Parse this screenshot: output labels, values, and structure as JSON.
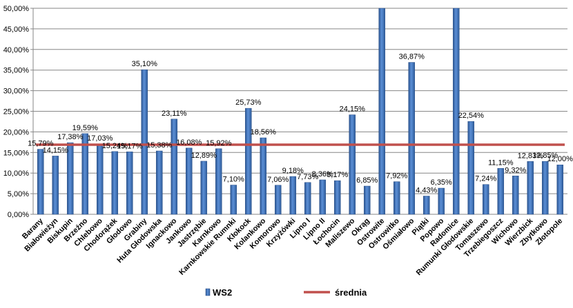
{
  "chart_data": {
    "type": "bar",
    "title": "",
    "xlabel": "",
    "ylabel": "",
    "ylim": [
      0,
      50
    ],
    "ytick_step": 5,
    "yticks": [
      "0,00%",
      "5,00%",
      "10,00%",
      "15,00%",
      "20,00%",
      "25,00%",
      "30,00%",
      "35,00%",
      "40,00%",
      "45,00%",
      "50,00%"
    ],
    "grid": true,
    "categories": [
      "Barany",
      "Białowieżyn",
      "Biskupin",
      "Brzeźno",
      "Chlebowo",
      "Chodorążek",
      "Głodowo",
      "Grabiny",
      "Huta Głodowska",
      "Ignackowo",
      "Jankowo",
      "Jastrzębie",
      "Karnkowo",
      "Karnkowskie Rumnki",
      "Kłokock",
      "Kolankowo",
      "Komorowo",
      "Krzyżówki",
      "Lipno I",
      "Lipno II",
      "Łochocin",
      "Maliszewo",
      "Okrąg",
      "Ostrowite",
      "Ostrowitko",
      "Ośmiałowo",
      "Piątki",
      "Popowo",
      "Radomice",
      "Rumunki Głodowskie",
      "Tomaszewo",
      "Trzebiegoszcz",
      "Wichowo",
      "Wierzbick",
      "Zbytkowo",
      "Złotopole"
    ],
    "series": [
      {
        "name": "WS2",
        "color": "#4a7ebb",
        "values": [
          15.79,
          14.15,
          17.38,
          19.59,
          17.03,
          15.24,
          15.17,
          35.1,
          15.38,
          23.11,
          16.08,
          12.89,
          15.92,
          7.1,
          25.73,
          18.56,
          7.06,
          9.18,
          7.73,
          8.36,
          8.17,
          24.15,
          6.85,
          50.0,
          7.92,
          36.87,
          4.43,
          6.35,
          50.0,
          22.54,
          7.24,
          11.15,
          9.32,
          12.83,
          12.85,
          12.0
        ],
        "labels": [
          "15,79%",
          "14,15%",
          "17,38%",
          "19,59%",
          "17,03%",
          "15,24%",
          "15,17%",
          "35,10%",
          "15,38%",
          "23,11%",
          "16,08%",
          "12,89%",
          "15,92%",
          "7,10%",
          "25,73%",
          "18,56%",
          "7,06%",
          "9,18%",
          "7,73%",
          "8,36%",
          "8,17%",
          "24,15%",
          "6,85%",
          "",
          "7,92%",
          "36,87%",
          "4,43%",
          "6,35%",
          "",
          "22,54%",
          "7,24%",
          "11,15%",
          "9,32%",
          "12,83%",
          "12,85%",
          "12,00%"
        ]
      }
    ],
    "average": {
      "name": "średnia",
      "value": 16.9,
      "color": "#c0504d"
    },
    "legend": [
      "WS2",
      "średnia"
    ],
    "legend_position": "bottom"
  }
}
